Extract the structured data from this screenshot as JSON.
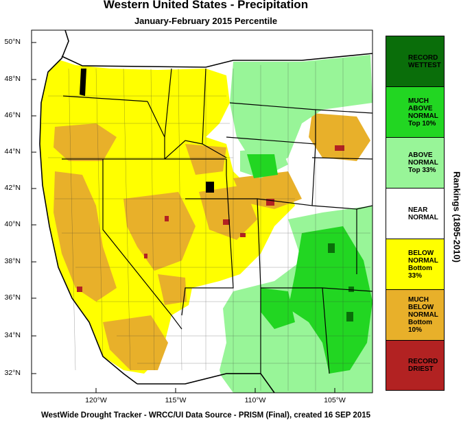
{
  "title": "Western United States - Precipitation",
  "subtitle": "January-February 2015 Percentile",
  "footer": "WestWide Drought Tracker - WRCC/UI  Data Source - PRISM (Final), created 16 SEP 2015",
  "legend_title": "Rankings (1895-2010)",
  "legend": [
    {
      "lines": [
        "RECORD",
        "WETTEST"
      ],
      "color": "#0a6e0a"
    },
    {
      "lines": [
        "MUCH",
        "ABOVE",
        "NORMAL",
        "Top 10%"
      ],
      "color": "#22d622"
    },
    {
      "lines": [
        "ABOVE",
        "NORMAL",
        "Top 33%"
      ],
      "color": "#98f598"
    },
    {
      "lines": [
        "NEAR",
        "NORMAL"
      ],
      "color": "#ffffff"
    },
    {
      "lines": [
        "BELOW",
        "NORMAL",
        "Bottom 33%"
      ],
      "color": "#ffff00"
    },
    {
      "lines": [
        "MUCH",
        "BELOW",
        "NORMAL",
        "Bottom 10%"
      ],
      "color": "#e8b02a"
    },
    {
      "lines": [
        "RECORD",
        "DRIEST"
      ],
      "color": "#b22222"
    }
  ],
  "lat_labels": [
    "50°N",
    "48°N",
    "46°N",
    "44°N",
    "42°N",
    "40°N",
    "38°N",
    "36°N",
    "34°N",
    "32°N"
  ],
  "lon_labels": [
    "120°W",
    "115°W",
    "110°W",
    "105°W"
  ],
  "colors": {
    "ocean": "#ffffff",
    "below": "#ffff00",
    "much_below": "#e8b02a",
    "record_dry": "#b22222",
    "near": "#ffffff",
    "above": "#98f598",
    "much_above": "#22d622",
    "record_wet": "#0a6e0a"
  }
}
